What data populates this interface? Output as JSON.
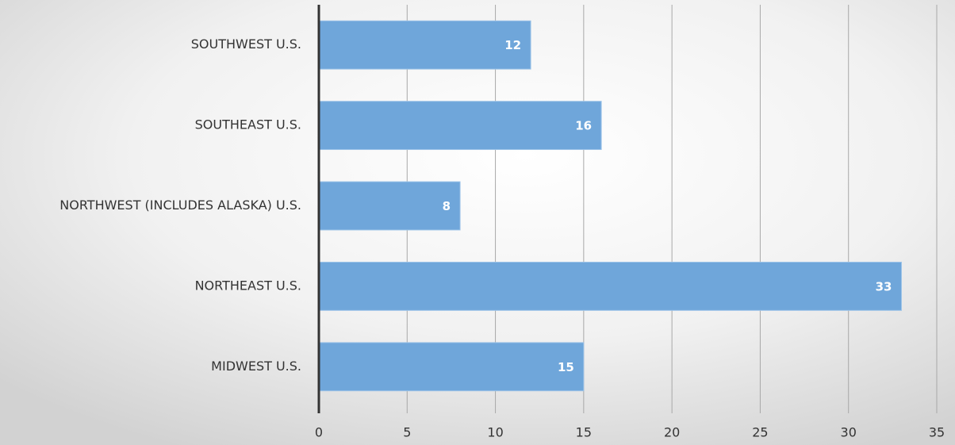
{
  "chart_data": {
    "type": "hbar",
    "categories": [
      "SOUTHWEST U.S.",
      "SOUTHEAST U.S.",
      "NORTHWEST (INCLUDES ALASKA) U.S.",
      "NORTHEAST U.S.",
      "MIDWEST U.S."
    ],
    "values": [
      12,
      16,
      8,
      33,
      15
    ],
    "color": "#6fa6da",
    "xlim": [
      0,
      35
    ],
    "xticks": [
      0,
      5,
      10,
      15,
      20,
      25,
      30,
      35
    ],
    "grid": true
  }
}
